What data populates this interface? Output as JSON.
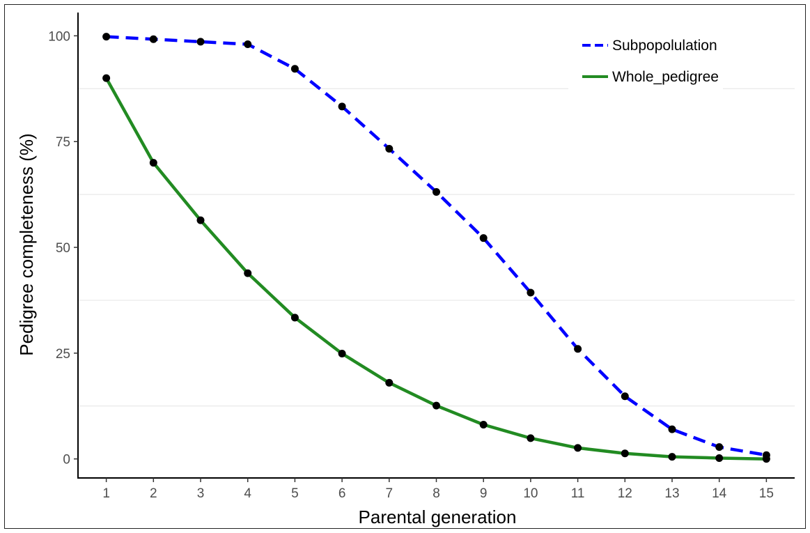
{
  "chart_data": {
    "type": "line",
    "title": "",
    "xlabel": "Parental generation",
    "ylabel": "Pedigree completeness (%)",
    "x": [
      1,
      2,
      3,
      4,
      5,
      6,
      7,
      8,
      9,
      10,
      11,
      12,
      13,
      14,
      15
    ],
    "x_ticks": [
      "1",
      "2",
      "3",
      "4",
      "5",
      "6",
      "7",
      "8",
      "9",
      "10",
      "11",
      "12",
      "13",
      "14",
      "15"
    ],
    "y_ticks": [
      "0",
      "25",
      "50",
      "75",
      "100"
    ],
    "xlim": [
      0.4,
      15.6
    ],
    "ylim": [
      -4.5,
      105.5
    ],
    "grid": "horizontal minor only",
    "legend_position": "top-right",
    "series": [
      {
        "name": "Subpopolulation",
        "style": "dashed",
        "color": "#0000ff",
        "values": [
          99.8,
          99.2,
          98.6,
          98.0,
          92.2,
          83.3,
          73.3,
          63.1,
          52.2,
          39.3,
          26.0,
          14.8,
          7.0,
          2.8,
          0.9
        ]
      },
      {
        "name": "Whole_pedigree",
        "style": "solid",
        "color": "#228b22",
        "values": [
          90.0,
          70.0,
          56.4,
          43.9,
          33.4,
          24.9,
          18.0,
          12.6,
          8.1,
          4.9,
          2.6,
          1.3,
          0.5,
          0.2,
          0.0
        ]
      }
    ]
  }
}
